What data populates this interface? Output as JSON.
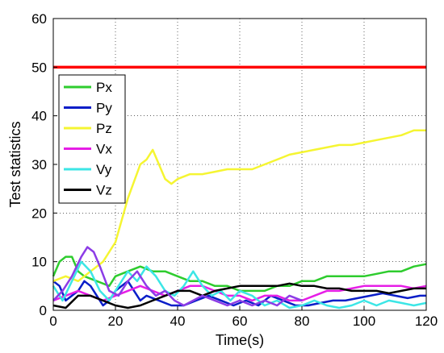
{
  "chart_data": {
    "type": "line",
    "title": "",
    "xlabel": "Time(s)",
    "ylabel": "Test statistics",
    "xlim": [
      0,
      120
    ],
    "ylim": [
      0,
      60
    ],
    "xticks": [
      0,
      20,
      40,
      60,
      80,
      100,
      120
    ],
    "yticks": [
      0,
      10,
      20,
      30,
      40,
      50,
      60
    ],
    "grid": true,
    "legend_position": "left",
    "threshold": {
      "value": 50,
      "color": "#ff0000"
    },
    "series": [
      {
        "name": "Px",
        "color": "#2ecc2e",
        "x": [
          0,
          2,
          4,
          6,
          8,
          10,
          14,
          18,
          20,
          24,
          28,
          32,
          36,
          40,
          44,
          48,
          52,
          56,
          60,
          64,
          68,
          72,
          76,
          80,
          84,
          88,
          92,
          96,
          100,
          104,
          108,
          112,
          116,
          120
        ],
        "y": [
          7,
          10,
          11,
          11,
          8,
          7,
          6,
          5,
          7,
          8,
          9,
          8,
          8,
          7,
          6,
          6,
          5,
          5,
          4,
          4,
          4,
          5,
          5,
          6,
          6,
          7,
          7,
          7,
          7,
          7.5,
          8,
          8,
          9,
          9.5
        ]
      },
      {
        "name": "Py",
        "color": "#0a1ec8",
        "x": [
          0,
          2,
          4,
          6,
          8,
          10,
          12,
          14,
          16,
          18,
          20,
          22,
          24,
          26,
          28,
          30,
          34,
          38,
          42,
          46,
          50,
          54,
          58,
          62,
          66,
          70,
          74,
          78,
          82,
          86,
          90,
          94,
          98,
          102,
          106,
          110,
          114,
          118,
          120
        ],
        "y": [
          6,
          5,
          2,
          3,
          4,
          6,
          5,
          3,
          1,
          2,
          4,
          5,
          6,
          4,
          2,
          3,
          2,
          1,
          1,
          2,
          3,
          2,
          1,
          2,
          1,
          3,
          2,
          1,
          1,
          1.5,
          2,
          2,
          2.5,
          3,
          3.5,
          3,
          2.5,
          3,
          3
        ]
      },
      {
        "name": "Pz",
        "color": "#f5f532",
        "x": [
          0,
          4,
          8,
          12,
          16,
          20,
          24,
          28,
          30,
          32,
          34,
          36,
          38,
          40,
          44,
          48,
          52,
          56,
          60,
          64,
          68,
          72,
          76,
          80,
          84,
          88,
          92,
          96,
          100,
          104,
          108,
          112,
          116,
          120
        ],
        "y": [
          6,
          7,
          6,
          8,
          10,
          14,
          23,
          30,
          31,
          33,
          30,
          27,
          26,
          27,
          28,
          28,
          28.5,
          29,
          29,
          29,
          30,
          31,
          32,
          32.5,
          33,
          33.5,
          34,
          34,
          34.5,
          35,
          35.5,
          36,
          37,
          37
        ]
      },
      {
        "name": "Vx",
        "color": "#e61ee6",
        "x": [
          0,
          4,
          8,
          12,
          16,
          20,
          24,
          28,
          32,
          36,
          40,
          44,
          48,
          52,
          56,
          60,
          64,
          68,
          72,
          76,
          80,
          84,
          88,
          92,
          96,
          100,
          104,
          108,
          112,
          116,
          120
        ],
        "y": [
          2,
          3,
          4,
          3,
          2,
          3,
          4,
          5,
          4,
          3,
          4,
          5,
          5,
          4,
          3,
          3,
          2,
          3,
          3,
          2,
          2,
          3,
          4,
          4,
          4.5,
          5,
          5,
          5,
          5,
          4.5,
          5
        ]
      },
      {
        "name": "Vy",
        "color": "#3ce6e6",
        "x": [
          0,
          3,
          6,
          9,
          12,
          15,
          18,
          21,
          24,
          27,
          30,
          33,
          36,
          39,
          42,
          45,
          48,
          51,
          54,
          57,
          60,
          64,
          68,
          72,
          76,
          80,
          84,
          88,
          92,
          96,
          100,
          104,
          108,
          112,
          116,
          120
        ],
        "y": [
          5,
          2,
          6,
          10,
          8,
          4,
          2,
          5,
          8,
          6,
          9,
          7,
          4,
          3,
          5,
          8,
          5,
          3,
          4,
          2,
          4,
          3,
          1,
          2,
          0.5,
          1,
          2,
          1,
          0.5,
          1,
          2,
          1,
          2,
          1.5,
          1,
          1.5
        ]
      },
      {
        "name": "Vz",
        "color": "#000000",
        "x": [
          0,
          4,
          8,
          12,
          16,
          20,
          24,
          28,
          32,
          36,
          40,
          44,
          48,
          52,
          56,
          60,
          64,
          68,
          72,
          76,
          80,
          84,
          88,
          92,
          96,
          100,
          104,
          108,
          112,
          116,
          120
        ],
        "y": [
          1,
          0.5,
          3,
          3,
          2,
          1,
          0.5,
          1,
          2,
          3,
          4,
          4,
          3,
          4,
          4.5,
          5,
          5,
          5,
          5,
          5.5,
          5,
          5,
          4.5,
          4.5,
          4,
          4,
          4,
          3.5,
          4,
          4.5,
          4.5
        ]
      },
      {
        "name": "",
        "color": "#8c3ce6",
        "x": [
          0,
          3,
          6,
          9,
          11,
          13,
          15,
          18,
          21,
          24,
          27,
          30,
          33,
          36,
          39,
          42,
          45,
          48,
          52,
          56,
          60,
          64,
          68,
          72,
          76,
          80
        ],
        "y": [
          2,
          4,
          7,
          11,
          13,
          12,
          9,
          4,
          3,
          6,
          8,
          5,
          3,
          4,
          2,
          1,
          2,
          3,
          2,
          1,
          2,
          1,
          2,
          1,
          3,
          2
        ]
      }
    ]
  }
}
